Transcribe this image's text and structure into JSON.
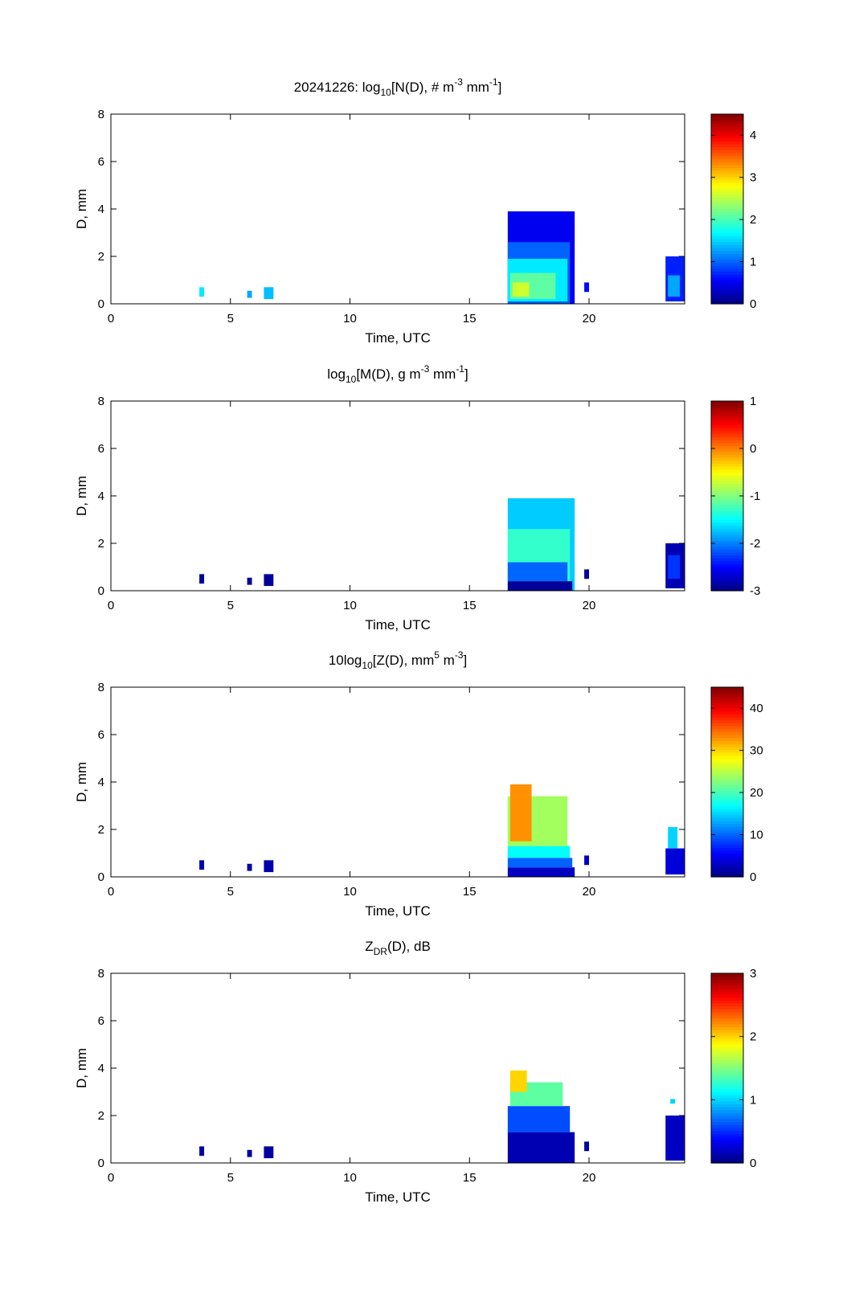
{
  "figure": {
    "date": "20241226",
    "background": "#ffffff"
  },
  "chart_data": [
    {
      "type": "heatmap",
      "title": "20241226: log10[N(D), # m-3 mm-1]",
      "title_parts": {
        "prefix": "20241226: log",
        "sub": "10",
        "mid": "[N(D), # m",
        "sup1": "-3",
        "mid2": " mm",
        "sup2": "-1",
        "suffix": "]"
      },
      "xlabel": "Time, UTC",
      "ylabel": "D, mm",
      "xlim": [
        0,
        24
      ],
      "ylim": [
        0,
        8
      ],
      "xticks": [
        "0",
        "5",
        "10",
        "15",
        "20"
      ],
      "yticks": [
        "0",
        "2",
        "4",
        "6",
        "8"
      ],
      "colorbar": {
        "range": [
          0,
          4.5
        ],
        "ticks": [
          "0",
          "1",
          "2",
          "3",
          "4"
        ]
      },
      "cells": [
        {
          "t0": 3.7,
          "t1": 3.9,
          "d0": 0.3,
          "d1": 0.7,
          "v": 1.6
        },
        {
          "t0": 5.7,
          "t1": 5.9,
          "d0": 0.25,
          "d1": 0.55,
          "v": 1.3
        },
        {
          "t0": 6.4,
          "t1": 6.8,
          "d0": 0.2,
          "d1": 0.7,
          "v": 1.4
        },
        {
          "t0": 16.6,
          "t1": 19.4,
          "d0": 0.0,
          "d1": 3.9,
          "v": 0.5
        },
        {
          "t0": 16.6,
          "t1": 19.2,
          "d0": 0.0,
          "d1": 2.6,
          "v": 1.0
        },
        {
          "t0": 16.6,
          "t1": 19.1,
          "d0": 0.1,
          "d1": 1.9,
          "v": 1.6
        },
        {
          "t0": 16.7,
          "t1": 18.6,
          "d0": 0.2,
          "d1": 1.3,
          "v": 2.1
        },
        {
          "t0": 16.8,
          "t1": 17.5,
          "d0": 0.3,
          "d1": 0.9,
          "v": 2.6
        },
        {
          "t0": 19.8,
          "t1": 20.0,
          "d0": 0.5,
          "d1": 0.9,
          "v": 0.6
        },
        {
          "t0": 23.2,
          "t1": 24.0,
          "d0": 0.1,
          "d1": 2.0,
          "v": 0.7
        },
        {
          "t0": 23.3,
          "t1": 23.8,
          "d0": 0.3,
          "d1": 1.2,
          "v": 1.3
        }
      ]
    },
    {
      "type": "heatmap",
      "title": "log10[M(D), g m-3 mm-1]",
      "title_parts": {
        "prefix": "log",
        "sub": "10",
        "mid": "[M(D), g m",
        "sup1": "-3",
        "mid2": " mm",
        "sup2": "-1",
        "suffix": "]"
      },
      "xlabel": "Time, UTC",
      "ylabel": "D, mm",
      "xlim": [
        0,
        24
      ],
      "ylim": [
        0,
        8
      ],
      "xticks": [
        "0",
        "5",
        "10",
        "15",
        "20"
      ],
      "yticks": [
        "0",
        "2",
        "4",
        "6",
        "8"
      ],
      "colorbar": {
        "range": [
          -3,
          1
        ],
        "ticks": [
          "-3",
          "-2",
          "-1",
          "0",
          "1"
        ]
      },
      "cells": [
        {
          "t0": 3.7,
          "t1": 3.9,
          "d0": 0.3,
          "d1": 0.7,
          "v": -2.9
        },
        {
          "t0": 5.7,
          "t1": 5.9,
          "d0": 0.25,
          "d1": 0.55,
          "v": -2.9
        },
        {
          "t0": 6.4,
          "t1": 6.8,
          "d0": 0.2,
          "d1": 0.7,
          "v": -2.9
        },
        {
          "t0": 16.6,
          "t1": 19.4,
          "d0": 0.0,
          "d1": 3.9,
          "v": -1.7
        },
        {
          "t0": 16.6,
          "t1": 19.2,
          "d0": 0.4,
          "d1": 2.6,
          "v": -1.3
        },
        {
          "t0": 16.6,
          "t1": 19.1,
          "d0": 0.4,
          "d1": 1.2,
          "v": -2.1
        },
        {
          "t0": 16.6,
          "t1": 19.3,
          "d0": 0.0,
          "d1": 0.4,
          "v": -2.9
        },
        {
          "t0": 19.8,
          "t1": 20.0,
          "d0": 0.5,
          "d1": 0.9,
          "v": -2.9
        },
        {
          "t0": 23.2,
          "t1": 24.0,
          "d0": 0.1,
          "d1": 2.0,
          "v": -2.8
        },
        {
          "t0": 23.3,
          "t1": 23.8,
          "d0": 0.5,
          "d1": 1.5,
          "v": -2.3
        }
      ]
    },
    {
      "type": "heatmap",
      "title": "10log10[Z(D), mm5 m-3]",
      "title_parts": {
        "prefix": "10log",
        "sub": "10",
        "mid": "[Z(D),  mm",
        "sup1": "5",
        "mid2": " m",
        "sup2": "-3",
        "suffix": "]"
      },
      "xlabel": "Time, UTC",
      "ylabel": "D, mm",
      "xlim": [
        0,
        24
      ],
      "ylim": [
        0,
        8
      ],
      "xticks": [
        "0",
        "5",
        "10",
        "15",
        "20"
      ],
      "yticks": [
        "0",
        "2",
        "4",
        "6",
        "8"
      ],
      "colorbar": {
        "range": [
          0,
          45
        ],
        "ticks": [
          "0",
          "10",
          "20",
          "30",
          "40"
        ]
      },
      "cells": [
        {
          "t0": 3.7,
          "t1": 3.9,
          "d0": 0.3,
          "d1": 0.7,
          "v": 2
        },
        {
          "t0": 5.7,
          "t1": 5.9,
          "d0": 0.25,
          "d1": 0.55,
          "v": 2
        },
        {
          "t0": 6.4,
          "t1": 6.8,
          "d0": 0.2,
          "d1": 0.7,
          "v": 2
        },
        {
          "t0": 16.6,
          "t1": 19.4,
          "d0": 0.0,
          "d1": 0.4,
          "v": 3
        },
        {
          "t0": 16.6,
          "t1": 19.3,
          "d0": 0.4,
          "d1": 0.8,
          "v": 10
        },
        {
          "t0": 16.6,
          "t1": 19.2,
          "d0": 0.8,
          "d1": 1.3,
          "v": 17
        },
        {
          "t0": 16.6,
          "t1": 19.1,
          "d0": 1.3,
          "d1": 3.4,
          "v": 24
        },
        {
          "t0": 16.7,
          "t1": 17.6,
          "d0": 1.5,
          "d1": 3.9,
          "v": 33
        },
        {
          "t0": 19.8,
          "t1": 20.0,
          "d0": 0.5,
          "d1": 0.9,
          "v": 3
        },
        {
          "t0": 23.2,
          "t1": 24.0,
          "d0": 0.1,
          "d1": 1.2,
          "v": 4
        },
        {
          "t0": 23.3,
          "t1": 23.7,
          "d0": 1.2,
          "d1": 2.1,
          "v": 15
        }
      ]
    },
    {
      "type": "heatmap",
      "title": "ZDR(D), dB",
      "title_parts": {
        "prefix": "Z",
        "sub": "DR",
        "mid": "(D), dB",
        "sup1": "",
        "mid2": "",
        "sup2": "",
        "suffix": ""
      },
      "xlabel": "Time, UTC",
      "ylabel": "D, mm",
      "xlim": [
        0,
        24
      ],
      "ylim": [
        0,
        8
      ],
      "xticks": [
        "0",
        "5",
        "10",
        "15",
        "20"
      ],
      "yticks": [
        "0",
        "2",
        "4",
        "6",
        "8"
      ],
      "colorbar": {
        "range": [
          0,
          3
        ],
        "ticks": [
          "0",
          "1",
          "2",
          "3"
        ]
      },
      "cells": [
        {
          "t0": 3.7,
          "t1": 3.9,
          "d0": 0.3,
          "d1": 0.7,
          "v": 0.1
        },
        {
          "t0": 5.7,
          "t1": 5.9,
          "d0": 0.25,
          "d1": 0.55,
          "v": 0.1
        },
        {
          "t0": 6.4,
          "t1": 6.8,
          "d0": 0.2,
          "d1": 0.7,
          "v": 0.1
        },
        {
          "t0": 16.6,
          "t1": 19.4,
          "d0": 0.0,
          "d1": 1.3,
          "v": 0.15
        },
        {
          "t0": 16.6,
          "t1": 19.2,
          "d0": 1.3,
          "d1": 2.4,
          "v": 0.6
        },
        {
          "t0": 16.7,
          "t1": 18.9,
          "d0": 2.4,
          "d1": 3.4,
          "v": 1.4
        },
        {
          "t0": 16.7,
          "t1": 17.4,
          "d0": 3.0,
          "d1": 3.9,
          "v": 2.0
        },
        {
          "t0": 19.8,
          "t1": 20.0,
          "d0": 0.5,
          "d1": 0.9,
          "v": 0.1
        },
        {
          "t0": 23.2,
          "t1": 24.0,
          "d0": 0.1,
          "d1": 2.0,
          "v": 0.2
        },
        {
          "t0": 23.4,
          "t1": 23.6,
          "d0": 2.5,
          "d1": 2.7,
          "v": 1.0
        }
      ]
    }
  ]
}
